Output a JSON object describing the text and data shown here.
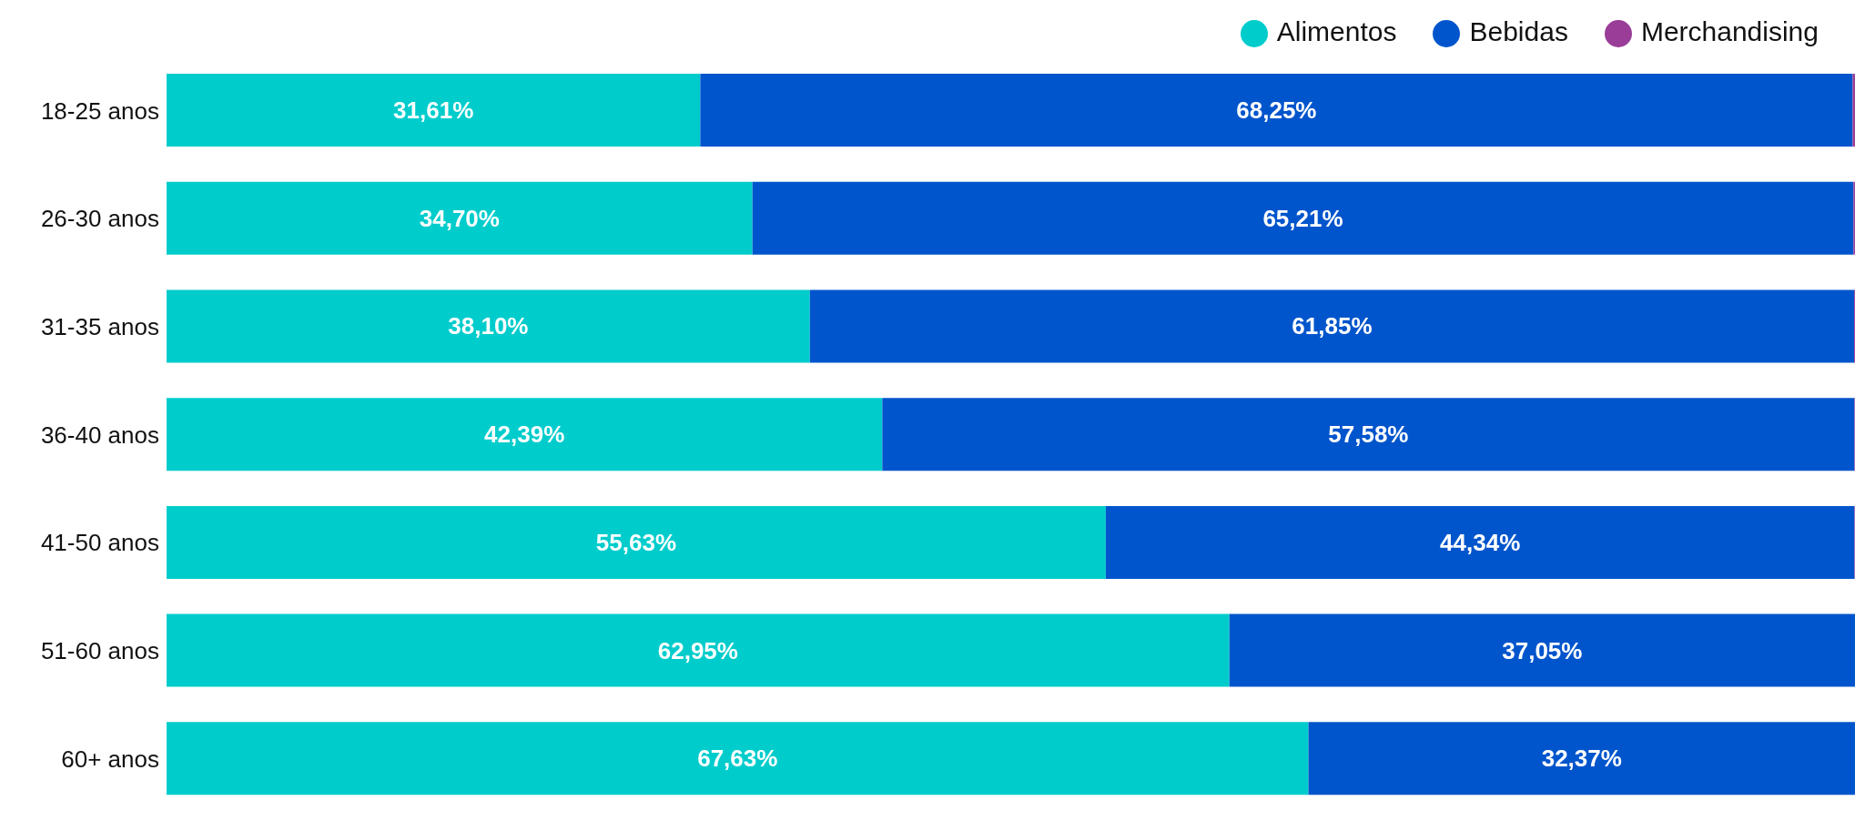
{
  "chart_data": {
    "type": "bar",
    "orientation": "horizontal",
    "stacked": true,
    "categories": [
      "18-25 anos",
      "26-30 anos",
      "31-35 anos",
      "36-40 anos",
      "41-50 anos",
      "51-60 anos",
      "60+ anos"
    ],
    "series": [
      {
        "name": "Alimentos",
        "color": "#00cccc",
        "values": [
          31.61,
          34.7,
          38.1,
          42.39,
          55.63,
          62.95,
          67.63
        ],
        "value_labels": [
          "31,61%",
          "34,70%",
          "38,10%",
          "42,39%",
          "55,63%",
          "62,95%",
          "67,63%"
        ]
      },
      {
        "name": "Bebidas",
        "color": "#0055cc",
        "values": [
          68.25,
          65.21,
          61.85,
          57.58,
          44.34,
          37.05,
          32.37
        ],
        "value_labels": [
          "68,25%",
          "65,21%",
          "61,85%",
          "57,58%",
          "44,34%",
          "37,05%",
          "32,37%"
        ]
      },
      {
        "name": "Merchandising",
        "color": "#993d99",
        "values": [
          0.14,
          0.09,
          0.05,
          0.03,
          0.03,
          0,
          0
        ]
      }
    ],
    "xlim": [
      0,
      100
    ],
    "tick_labels": "y",
    "legend": "top right"
  }
}
